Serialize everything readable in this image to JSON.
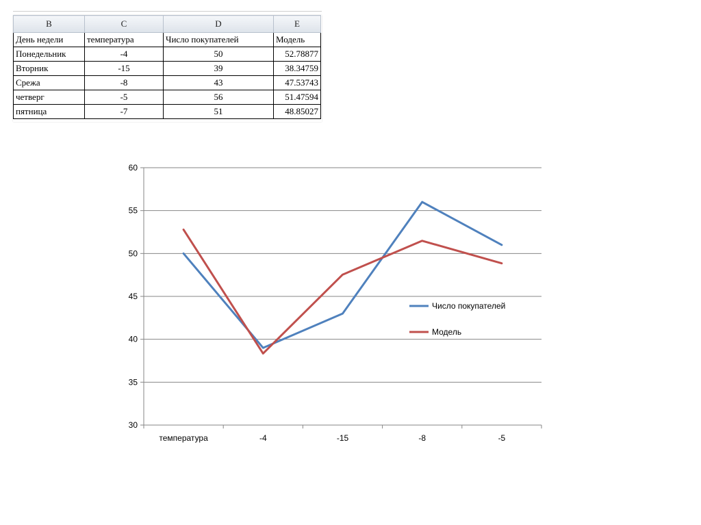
{
  "table": {
    "column_letters": [
      "B",
      "C",
      "D",
      "E"
    ],
    "headers": [
      "День недели",
      "температура",
      "Число покупателей",
      "Модель"
    ],
    "rows": [
      [
        "Понедельник",
        "-4",
        "50",
        "52.78877"
      ],
      [
        "Вторник",
        "-15",
        "39",
        "38.34759"
      ],
      [
        "Срежа",
        "-8",
        "43",
        "47.53743"
      ],
      [
        "четверг",
        "-5",
        "56",
        "51.47594"
      ],
      [
        "пятница",
        "-7",
        "51",
        "48.85027"
      ]
    ]
  },
  "chart_data": {
    "type": "line",
    "title": "",
    "xlabel": "",
    "ylabel": "",
    "categories": [
      "температура",
      "-4",
      "-15",
      "-8",
      "-5"
    ],
    "ylim": [
      30,
      60
    ],
    "yticks": [
      30,
      35,
      40,
      45,
      50,
      55,
      60
    ],
    "grid": true,
    "legend": "right",
    "series": [
      {
        "name": "Число покупателей",
        "color": "#4f81bd",
        "values": [
          50,
          39,
          43,
          56,
          51
        ]
      },
      {
        "name": "Модель",
        "color": "#c0504d",
        "values": [
          52.78877,
          38.34759,
          47.53743,
          51.47594,
          48.85027
        ]
      }
    ]
  }
}
